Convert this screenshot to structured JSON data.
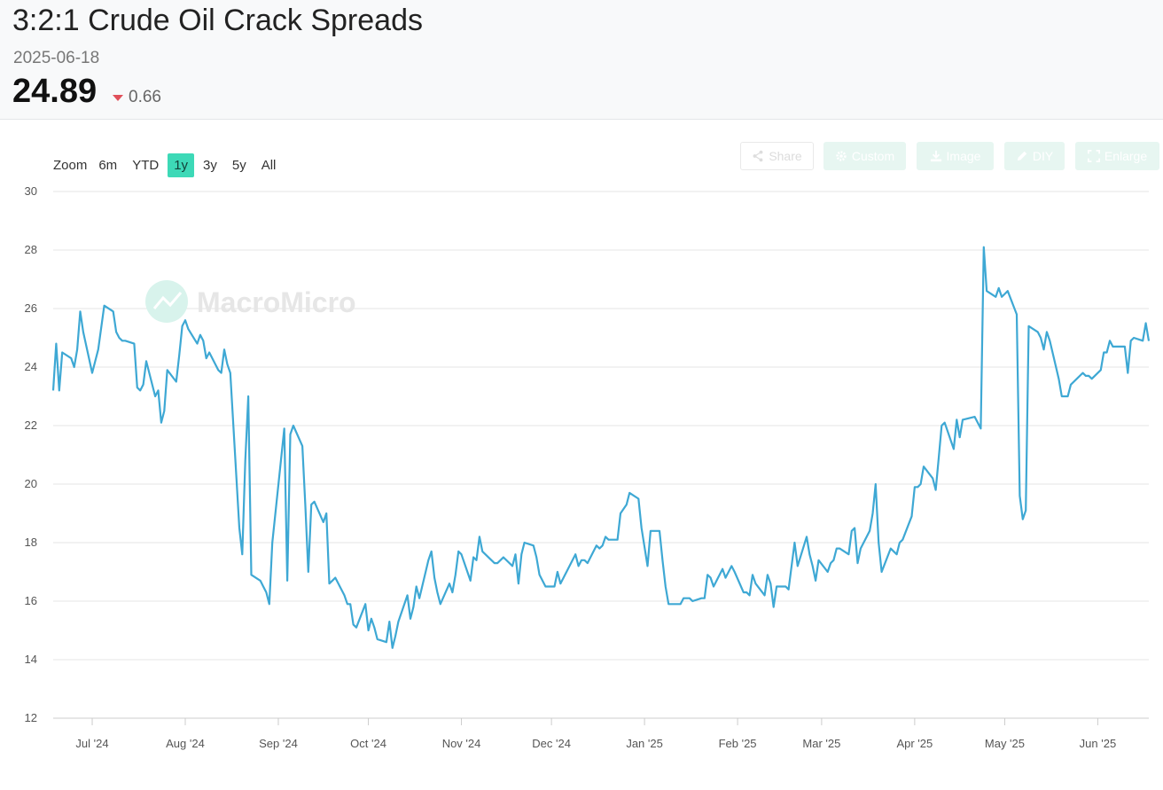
{
  "header": {
    "title": "3:2:1 Crude Oil Crack Spreads",
    "date": "2025-06-18",
    "value": "24.89",
    "change": "0.66",
    "change_direction": "down",
    "down_color": "#e0505a"
  },
  "zoom": {
    "label": "Zoom",
    "options": [
      "6m",
      "YTD",
      "1y",
      "3y",
      "5y",
      "All"
    ],
    "active": "1y"
  },
  "toolbar": {
    "share": "Share",
    "custom": "Custom",
    "image": "Image",
    "diy": "DIY",
    "enlarge": "Enlarge"
  },
  "watermark": "MacroMicro",
  "colors": {
    "line": "#3ea8d4",
    "accent": "#3dd9b7"
  },
  "chart_data": {
    "type": "line",
    "ylim": [
      12,
      30
    ],
    "yticks": [
      12,
      14,
      16,
      18,
      20,
      22,
      24,
      26,
      28,
      30
    ],
    "xlim": [
      "2024-06-18",
      "2025-06-18"
    ],
    "xticks": [
      {
        "date": "2024-07-01",
        "label": "Jul '24"
      },
      {
        "date": "2024-08-01",
        "label": "Aug '24"
      },
      {
        "date": "2024-09-01",
        "label": "Sep '24"
      },
      {
        "date": "2024-10-01",
        "label": "Oct '24"
      },
      {
        "date": "2024-11-01",
        "label": "Nov '24"
      },
      {
        "date": "2024-12-01",
        "label": "Dec '24"
      },
      {
        "date": "2025-01-01",
        "label": "Jan '25"
      },
      {
        "date": "2025-02-01",
        "label": "Feb '25"
      },
      {
        "date": "2025-03-01",
        "label": "Mar '25"
      },
      {
        "date": "2025-04-01",
        "label": "Apr '25"
      },
      {
        "date": "2025-05-01",
        "label": "May '25"
      },
      {
        "date": "2025-06-01",
        "label": "Jun '25"
      }
    ],
    "grid": true,
    "series": [
      {
        "values": [
          [
            "2024-06-18",
            23.2
          ],
          [
            "2024-06-19",
            24.8
          ],
          [
            "2024-06-20",
            23.2
          ],
          [
            "2024-06-21",
            24.5
          ],
          [
            "2024-06-24",
            24.3
          ],
          [
            "2024-06-25",
            24.0
          ],
          [
            "2024-06-26",
            24.6
          ],
          [
            "2024-06-27",
            25.9
          ],
          [
            "2024-06-28",
            25.2
          ],
          [
            "2024-07-01",
            23.8
          ],
          [
            "2024-07-02",
            24.2
          ],
          [
            "2024-07-03",
            24.6
          ],
          [
            "2024-07-05",
            26.1
          ],
          [
            "2024-07-08",
            25.9
          ],
          [
            "2024-07-09",
            25.2
          ],
          [
            "2024-07-10",
            25.0
          ],
          [
            "2024-07-11",
            24.9
          ],
          [
            "2024-07-12",
            24.9
          ],
          [
            "2024-07-15",
            24.8
          ],
          [
            "2024-07-16",
            23.3
          ],
          [
            "2024-07-17",
            23.2
          ],
          [
            "2024-07-18",
            23.4
          ],
          [
            "2024-07-19",
            24.2
          ],
          [
            "2024-07-22",
            23.0
          ],
          [
            "2024-07-23",
            23.2
          ],
          [
            "2024-07-24",
            22.1
          ],
          [
            "2024-07-25",
            22.5
          ],
          [
            "2024-07-26",
            23.9
          ],
          [
            "2024-07-29",
            23.5
          ],
          [
            "2024-07-30",
            24.4
          ],
          [
            "2024-07-31",
            25.4
          ],
          [
            "2024-08-01",
            25.6
          ],
          [
            "2024-08-02",
            25.3
          ],
          [
            "2024-08-05",
            24.8
          ],
          [
            "2024-08-06",
            25.1
          ],
          [
            "2024-08-07",
            24.9
          ],
          [
            "2024-08-08",
            24.3
          ],
          [
            "2024-08-09",
            24.5
          ],
          [
            "2024-08-12",
            23.9
          ],
          [
            "2024-08-13",
            23.8
          ],
          [
            "2024-08-14",
            24.6
          ],
          [
            "2024-08-15",
            24.1
          ],
          [
            "2024-08-16",
            23.8
          ],
          [
            "2024-08-19",
            18.5
          ],
          [
            "2024-08-20",
            17.6
          ],
          [
            "2024-08-21",
            20.8
          ],
          [
            "2024-08-22",
            23.0
          ],
          [
            "2024-08-23",
            16.9
          ],
          [
            "2024-08-26",
            16.7
          ],
          [
            "2024-08-27",
            16.5
          ],
          [
            "2024-08-28",
            16.3
          ],
          [
            "2024-08-29",
            15.9
          ],
          [
            "2024-08-30",
            18.0
          ],
          [
            "2024-09-03",
            21.9
          ],
          [
            "2024-09-04",
            16.7
          ],
          [
            "2024-09-05",
            21.7
          ],
          [
            "2024-09-06",
            22.0
          ],
          [
            "2024-09-09",
            21.3
          ],
          [
            "2024-09-10",
            19.3
          ],
          [
            "2024-09-11",
            17.0
          ],
          [
            "2024-09-12",
            19.3
          ],
          [
            "2024-09-13",
            19.4
          ],
          [
            "2024-09-16",
            18.7
          ],
          [
            "2024-09-17",
            19.0
          ],
          [
            "2024-09-18",
            16.6
          ],
          [
            "2024-09-19",
            16.7
          ],
          [
            "2024-09-20",
            16.8
          ],
          [
            "2024-09-23",
            16.2
          ],
          [
            "2024-09-24",
            15.9
          ],
          [
            "2024-09-25",
            15.9
          ],
          [
            "2024-09-26",
            15.2
          ],
          [
            "2024-09-27",
            15.1
          ],
          [
            "2024-09-30",
            15.9
          ],
          [
            "2024-10-01",
            15.0
          ],
          [
            "2024-10-02",
            15.4
          ],
          [
            "2024-10-03",
            15.1
          ],
          [
            "2024-10-04",
            14.7
          ],
          [
            "2024-10-07",
            14.6
          ],
          [
            "2024-10-08",
            15.3
          ],
          [
            "2024-10-09",
            14.4
          ],
          [
            "2024-10-10",
            14.8
          ],
          [
            "2024-10-11",
            15.3
          ],
          [
            "2024-10-14",
            16.2
          ],
          [
            "2024-10-15",
            15.4
          ],
          [
            "2024-10-16",
            15.8
          ],
          [
            "2024-10-17",
            16.5
          ],
          [
            "2024-10-18",
            16.1
          ],
          [
            "2024-10-21",
            17.4
          ],
          [
            "2024-10-22",
            17.7
          ],
          [
            "2024-10-23",
            16.8
          ],
          [
            "2024-10-24",
            16.3
          ],
          [
            "2024-10-25",
            15.9
          ],
          [
            "2024-10-28",
            16.6
          ],
          [
            "2024-10-29",
            16.3
          ],
          [
            "2024-10-30",
            16.9
          ],
          [
            "2024-10-31",
            17.7
          ],
          [
            "2024-11-01",
            17.6
          ],
          [
            "2024-11-04",
            16.7
          ],
          [
            "2024-11-05",
            17.5
          ],
          [
            "2024-11-06",
            17.4
          ],
          [
            "2024-11-07",
            18.2
          ],
          [
            "2024-11-08",
            17.7
          ],
          [
            "2024-11-11",
            17.4
          ],
          [
            "2024-11-12",
            17.3
          ],
          [
            "2024-11-13",
            17.3
          ],
          [
            "2024-11-14",
            17.4
          ],
          [
            "2024-11-15",
            17.5
          ],
          [
            "2024-11-18",
            17.2
          ],
          [
            "2024-11-19",
            17.6
          ],
          [
            "2024-11-20",
            16.6
          ],
          [
            "2024-11-21",
            17.6
          ],
          [
            "2024-11-22",
            18.0
          ],
          [
            "2024-11-25",
            17.9
          ],
          [
            "2024-11-26",
            17.5
          ],
          [
            "2024-11-27",
            16.9
          ],
          [
            "2024-11-29",
            16.5
          ],
          [
            "2024-12-02",
            16.5
          ],
          [
            "2024-12-03",
            17.0
          ],
          [
            "2024-12-04",
            16.6
          ],
          [
            "2024-12-05",
            16.8
          ],
          [
            "2024-12-06",
            17.0
          ],
          [
            "2024-12-09",
            17.6
          ],
          [
            "2024-12-10",
            17.2
          ],
          [
            "2024-12-11",
            17.4
          ],
          [
            "2024-12-12",
            17.4
          ],
          [
            "2024-12-13",
            17.3
          ],
          [
            "2024-12-16",
            17.9
          ],
          [
            "2024-12-17",
            17.8
          ],
          [
            "2024-12-18",
            17.9
          ],
          [
            "2024-12-19",
            18.2
          ],
          [
            "2024-12-20",
            18.1
          ],
          [
            "2024-12-23",
            18.1
          ],
          [
            "2024-12-24",
            19.0
          ],
          [
            "2024-12-26",
            19.3
          ],
          [
            "2024-12-27",
            19.7
          ],
          [
            "2024-12-30",
            19.5
          ],
          [
            "2024-12-31",
            18.5
          ],
          [
            "2025-01-02",
            17.2
          ],
          [
            "2025-01-03",
            18.4
          ],
          [
            "2025-01-06",
            18.4
          ],
          [
            "2025-01-07",
            17.4
          ],
          [
            "2025-01-08",
            16.5
          ],
          [
            "2025-01-09",
            15.9
          ],
          [
            "2025-01-10",
            15.9
          ],
          [
            "2025-01-13",
            15.9
          ],
          [
            "2025-01-14",
            16.1
          ],
          [
            "2025-01-15",
            16.1
          ],
          [
            "2025-01-16",
            16.1
          ],
          [
            "2025-01-17",
            16.0
          ],
          [
            "2025-01-20",
            16.1
          ],
          [
            "2025-01-21",
            16.1
          ],
          [
            "2025-01-22",
            16.9
          ],
          [
            "2025-01-23",
            16.8
          ],
          [
            "2025-01-24",
            16.5
          ],
          [
            "2025-01-27",
            17.1
          ],
          [
            "2025-01-28",
            16.8
          ],
          [
            "2025-01-29",
            17.0
          ],
          [
            "2025-01-30",
            17.2
          ],
          [
            "2025-01-31",
            17.0
          ],
          [
            "2025-02-03",
            16.3
          ],
          [
            "2025-02-04",
            16.3
          ],
          [
            "2025-02-05",
            16.2
          ],
          [
            "2025-02-06",
            16.9
          ],
          [
            "2025-02-07",
            16.6
          ],
          [
            "2025-02-10",
            16.2
          ],
          [
            "2025-02-11",
            16.9
          ],
          [
            "2025-02-12",
            16.6
          ],
          [
            "2025-02-13",
            15.8
          ],
          [
            "2025-02-14",
            16.5
          ],
          [
            "2025-02-17",
            16.5
          ],
          [
            "2025-02-18",
            16.4
          ],
          [
            "2025-02-19",
            17.2
          ],
          [
            "2025-02-20",
            18.0
          ],
          [
            "2025-02-21",
            17.2
          ],
          [
            "2025-02-24",
            18.2
          ],
          [
            "2025-02-25",
            17.6
          ],
          [
            "2025-02-26",
            17.2
          ],
          [
            "2025-02-27",
            16.7
          ],
          [
            "2025-02-28",
            17.4
          ],
          [
            "2025-03-03",
            17.0
          ],
          [
            "2025-03-04",
            17.3
          ],
          [
            "2025-03-05",
            17.4
          ],
          [
            "2025-03-06",
            17.8
          ],
          [
            "2025-03-07",
            17.8
          ],
          [
            "2025-03-10",
            17.6
          ],
          [
            "2025-03-11",
            18.4
          ],
          [
            "2025-03-12",
            18.5
          ],
          [
            "2025-03-13",
            17.3
          ],
          [
            "2025-03-14",
            17.8
          ],
          [
            "2025-03-17",
            18.4
          ],
          [
            "2025-03-18",
            19.0
          ],
          [
            "2025-03-19",
            20.0
          ],
          [
            "2025-03-20",
            18.0
          ],
          [
            "2025-03-21",
            17.0
          ],
          [
            "2025-03-24",
            17.8
          ],
          [
            "2025-03-25",
            17.7
          ],
          [
            "2025-03-26",
            17.6
          ],
          [
            "2025-03-27",
            18.0
          ],
          [
            "2025-03-28",
            18.1
          ],
          [
            "2025-03-31",
            18.9
          ],
          [
            "2025-04-01",
            19.9
          ],
          [
            "2025-04-02",
            19.9
          ],
          [
            "2025-04-03",
            20.0
          ],
          [
            "2025-04-04",
            20.6
          ],
          [
            "2025-04-07",
            20.2
          ],
          [
            "2025-04-08",
            19.8
          ],
          [
            "2025-04-09",
            20.9
          ],
          [
            "2025-04-10",
            22.0
          ],
          [
            "2025-04-11",
            22.1
          ],
          [
            "2025-04-14",
            21.2
          ],
          [
            "2025-04-15",
            22.2
          ],
          [
            "2025-04-16",
            21.6
          ],
          [
            "2025-04-17",
            22.2
          ],
          [
            "2025-04-21",
            22.3
          ],
          [
            "2025-04-22",
            22.1
          ],
          [
            "2025-04-23",
            21.9
          ],
          [
            "2025-04-24",
            28.1
          ],
          [
            "2025-04-25",
            26.6
          ],
          [
            "2025-04-28",
            26.4
          ],
          [
            "2025-04-29",
            26.7
          ],
          [
            "2025-04-30",
            26.4
          ],
          [
            "2025-05-01",
            26.5
          ],
          [
            "2025-05-02",
            26.6
          ],
          [
            "2025-05-05",
            25.8
          ],
          [
            "2025-05-06",
            19.6
          ],
          [
            "2025-05-07",
            18.8
          ],
          [
            "2025-05-08",
            19.1
          ],
          [
            "2025-05-09",
            25.4
          ],
          [
            "2025-05-12",
            25.2
          ],
          [
            "2025-05-13",
            25.0
          ],
          [
            "2025-05-14",
            24.6
          ],
          [
            "2025-05-15",
            25.2
          ],
          [
            "2025-05-16",
            24.9
          ],
          [
            "2025-05-19",
            23.6
          ],
          [
            "2025-05-20",
            23.0
          ],
          [
            "2025-05-21",
            23.0
          ],
          [
            "2025-05-22",
            23.0
          ],
          [
            "2025-05-23",
            23.4
          ],
          [
            "2025-05-27",
            23.8
          ],
          [
            "2025-05-28",
            23.7
          ],
          [
            "2025-05-29",
            23.7
          ],
          [
            "2025-05-30",
            23.6
          ],
          [
            "2025-06-02",
            23.9
          ],
          [
            "2025-06-03",
            24.5
          ],
          [
            "2025-06-04",
            24.5
          ],
          [
            "2025-06-05",
            24.9
          ],
          [
            "2025-06-06",
            24.7
          ],
          [
            "2025-06-09",
            24.7
          ],
          [
            "2025-06-10",
            24.7
          ],
          [
            "2025-06-11",
            23.8
          ],
          [
            "2025-06-12",
            24.9
          ],
          [
            "2025-06-13",
            25.0
          ],
          [
            "2025-06-16",
            24.9
          ],
          [
            "2025-06-17",
            25.5
          ],
          [
            "2025-06-18",
            24.89
          ]
        ]
      }
    ]
  }
}
